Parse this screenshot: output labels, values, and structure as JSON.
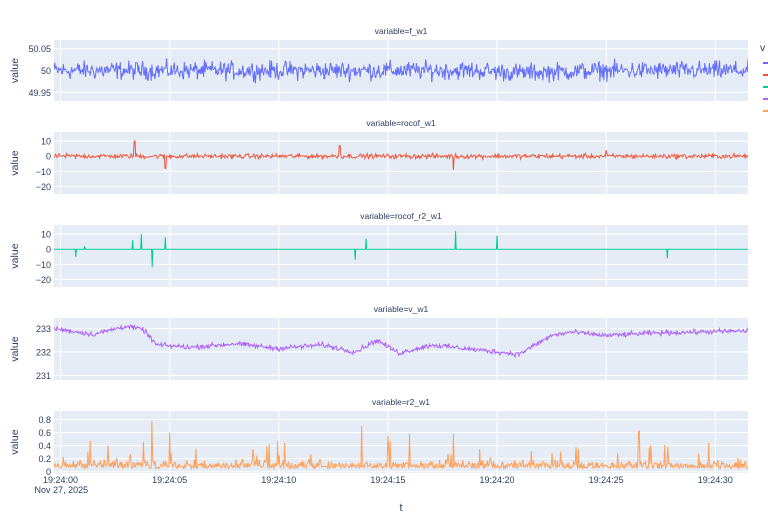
{
  "chart_data": [
    {
      "type": "line",
      "title": "variable=f_w1",
      "ylabel": "value",
      "ylim": [
        49.93,
        50.07
      ],
      "yticks": [
        "50.05",
        "50",
        "49.95"
      ],
      "ytick_values": [
        50.05,
        50.0,
        49.95
      ],
      "color": "#636efa",
      "base": 50.0,
      "noise": 0.018,
      "series": [
        {
          "x": [
            0,
            3,
            7,
            13,
            19,
            21,
            25,
            27,
            31
          ],
          "y": [
            50.0,
            50.0,
            50.0,
            50.0,
            50.0,
            49.995,
            50.0,
            50.0,
            50.0
          ]
        }
      ]
    },
    {
      "type": "line",
      "title": "variable=rocof_w1",
      "ylabel": "value",
      "ylim": [
        -25,
        16
      ],
      "yticks": [
        "10",
        "0",
        "−10",
        "−20"
      ],
      "ytick_values": [
        10,
        0,
        -10,
        -20
      ],
      "color": "#ef553b",
      "base": 0,
      "noise": 1.3,
      "series": [
        {
          "x": [
            0,
            3.4,
            4.8,
            12.8,
            18,
            25
          ],
          "y": [
            0,
            10,
            -8,
            7,
            -9,
            4
          ]
        }
      ]
    },
    {
      "type": "line",
      "title": "variable=rocof_r2_w1",
      "ylabel": "value",
      "ylim": [
        -25,
        16
      ],
      "yticks": [
        "10",
        "0",
        "−10",
        "−20"
      ],
      "ytick_values": [
        10,
        0,
        -10,
        -20
      ],
      "color": "#00cc96",
      "base": 0,
      "noise": 0,
      "series": [
        {
          "x": [
            0.7,
            1.1,
            3.3,
            3.7,
            4.2,
            4.8,
            13.5,
            14,
            18.1,
            20,
            27.8
          ],
          "y": [
            -5,
            2,
            6,
            10,
            -12,
            8,
            -7,
            7,
            12,
            9,
            -6
          ]
        }
      ]
    },
    {
      "type": "line",
      "title": "variable=v_w1",
      "ylabel": "value",
      "ylim": [
        230.8,
        233.45
      ],
      "yticks": [
        "233",
        "232",
        "231"
      ],
      "ytick_values": [
        233,
        232,
        231
      ],
      "color": "#ab63fa",
      "base": 232.5,
      "noise": 0.09,
      "series": [
        {
          "x": [
            -0.3,
            1.5,
            3,
            3.8,
            4.4,
            6,
            8,
            10,
            12,
            13.5,
            14.5,
            15.5,
            17,
            19,
            21,
            22.5,
            23.4,
            25,
            27,
            29,
            31.5
          ],
          "y": [
            233.0,
            232.75,
            233.1,
            232.95,
            232.3,
            232.2,
            232.35,
            232.15,
            232.3,
            232.0,
            232.5,
            231.95,
            232.3,
            232.1,
            231.9,
            232.7,
            232.85,
            232.7,
            232.8,
            232.85,
            232.9
          ]
        }
      ]
    },
    {
      "type": "line",
      "title": "variable=r2_w1",
      "ylabel": "value",
      "ylim": [
        -0.02,
        0.93
      ],
      "yticks": [
        "0.8",
        "0.6",
        "0.4",
        "0.2",
        "0"
      ],
      "ytick_values": [
        0.8,
        0.6,
        0.4,
        0.2,
        0
      ],
      "color": "#ffa15a",
      "base": 0.12,
      "noise": 0.1,
      "series": [
        {
          "x": [
            4.2,
            5,
            13.8,
            15,
            16,
            18,
            26.5
          ],
          "y": [
            0.78,
            0.6,
            0.7,
            0.55,
            0.58,
            0.58,
            0.62
          ]
        }
      ]
    }
  ],
  "xaxis": {
    "title": "t",
    "tick_labels": [
      "19:24:00",
      "19:24:05",
      "19:24:10",
      "19:24:15",
      "19:24:20",
      "19:24:25",
      "19:24:30"
    ],
    "tick_values": [
      0,
      5,
      10,
      15,
      20,
      25,
      30
    ],
    "date_label": "Nov 27, 2025",
    "range": [
      -0.3,
      31.5
    ]
  },
  "legend": {
    "title": "v",
    "position": "top-right",
    "entries": [
      {
        "color": "#636efa"
      },
      {
        "color": "#ef553b"
      },
      {
        "color": "#00cc96"
      },
      {
        "color": "#ab63fa"
      },
      {
        "color": "#ffa15a"
      }
    ]
  }
}
